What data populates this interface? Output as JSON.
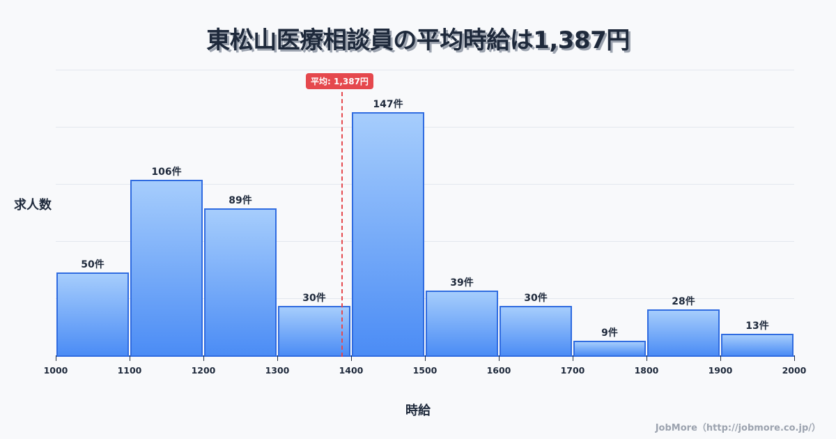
{
  "header": {
    "title": "東松山医療相談員の平均時給は1,387円"
  },
  "axes": {
    "ylabel": "求人数",
    "xlabel": "時給"
  },
  "average": {
    "label": "平均: 1,387円",
    "value": 1387,
    "color": "#e5484d"
  },
  "credit": "JobMore（http://jobmore.co.jp/）",
  "ticks": [
    "1000",
    "1100",
    "1200",
    "1300",
    "1400",
    "1500",
    "1600",
    "1700",
    "1800",
    "1900",
    "2000"
  ],
  "bars": [
    {
      "label": "50件",
      "value": 50
    },
    {
      "label": "106件",
      "value": 106
    },
    {
      "label": "89件",
      "value": 89
    },
    {
      "label": "30件",
      "value": 30
    },
    {
      "label": "147件",
      "value": 147
    },
    {
      "label": "39件",
      "value": 39
    },
    {
      "label": "30件",
      "value": 30
    },
    {
      "label": "9件",
      "value": 9
    },
    {
      "label": "28件",
      "value": 28
    },
    {
      "label": "13件",
      "value": 13
    }
  ],
  "colors": {
    "bar_fill_top": "#a6cdfc",
    "bar_fill_bottom": "#4b8cf5",
    "bar_border": "#2f6be0",
    "title": "#1e293b"
  },
  "chart_data": {
    "type": "bar",
    "title": "東松山医療相談員の平均時給は1,387円",
    "xlabel": "時給",
    "ylabel": "求人数",
    "categories": [
      "1000-1100",
      "1100-1200",
      "1200-1300",
      "1300-1400",
      "1400-1500",
      "1500-1600",
      "1600-1700",
      "1700-1800",
      "1800-1900",
      "1900-2000"
    ],
    "bin_edges": [
      1000,
      1100,
      1200,
      1300,
      1400,
      1500,
      1600,
      1700,
      1800,
      1900,
      2000
    ],
    "values": [
      50,
      106,
      89,
      30,
      147,
      39,
      30,
      9,
      28,
      13
    ],
    "value_labels": [
      "50件",
      "106件",
      "89件",
      "30件",
      "147件",
      "39件",
      "30件",
      "9件",
      "28件",
      "13件"
    ],
    "annotations": [
      {
        "type": "vline",
        "x": 1387,
        "label": "平均: 1,387円"
      }
    ],
    "xlim": [
      1000,
      2000
    ],
    "grid": true,
    "legend": null
  }
}
